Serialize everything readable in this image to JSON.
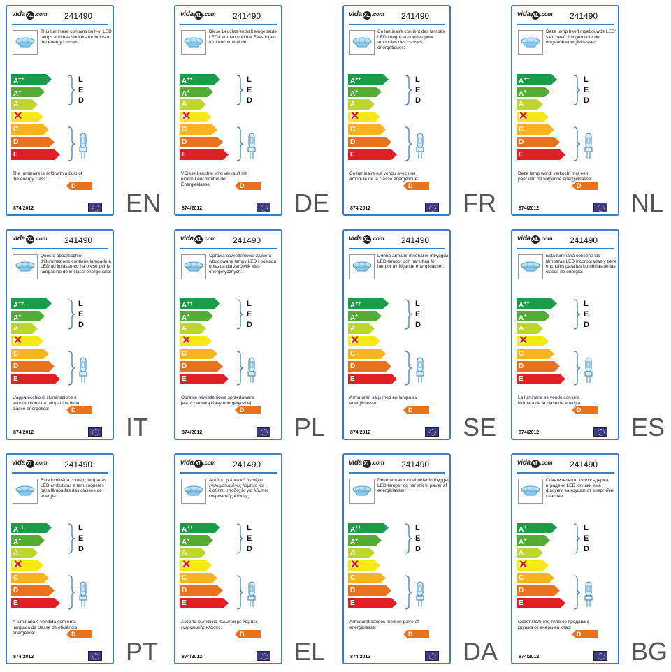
{
  "colors": {
    "border": "#3a7fc1",
    "A++": "#1a9d49",
    "A+": "#52ad32",
    "A": "#bdd62e",
    "B": "#f7e918",
    "C": "#f6b41f",
    "D": "#e8731c",
    "E": "#e01e26"
  },
  "icons": [
    "ceiling-lamp-icon",
    "halogen-bulb-icon",
    "eu-flag-icon",
    "cross-mark-icon"
  ],
  "brand": "vidaXL.com",
  "model": "241490",
  "classes": [
    "A++",
    "A+",
    "A",
    "B",
    "C",
    "D",
    "E"
  ],
  "excluded_class": "B",
  "led_letters": [
    "L",
    "E",
    "D"
  ],
  "sold_class": "D",
  "regulation": "874/2012",
  "labels": [
    {
      "lang": "EN",
      "desc": "This luminaire contains built-in LED lamps and has sockets for bulbs of the energy classes:",
      "sold": "The luminaire is sold with a bulb of the energy class:"
    },
    {
      "lang": "DE",
      "desc": "Diese Leuchte enthält eingebaute LED-Lampen und hat Fassungen für Leuchtmittel der",
      "sold": "VDiese Leuchte wird verkauft mit einem Leuchtmittel der Energieklasse:"
    },
    {
      "lang": "FR",
      "desc": "Ce luminaire contient des lampes LED intégré et douilles pour ampoules des classes énergétiques:",
      "sold": "Ce luminaire est vendu avec une ampoule de la classe énergétique:"
    },
    {
      "lang": "NL",
      "desc": "Deze lamp heeft ingebouwde LED' s en heeft fittingen voor de volgende energieklassen:",
      "sold": "Deze lamp wordt verkocht met een peer van de volgende energieklasse:"
    },
    {
      "lang": "IT",
      "desc": "Questo apparecchio d'illuminazione contiene lampade a LED ad incasso ed ha prese per le lampadine delle classi energetiche:",
      "sold": "L'apparecchio d' illuminazione è venduto con una lampadina della classe energetica:"
    },
    {
      "lang": "PL",
      "desc": "Oprawa oświetleniowa zawiera wbudowane lampy LED i posiada gniazda dla żarówek klas energetycznych:",
      "sold": "Oprawa oświetleniowa sprzedawana jest z żarówką klasy energetycznej:"
    },
    {
      "lang": "SE",
      "desc": "Denna armatur innehåller inbyggda LED-lampor och har uttag för lampor av följande energiklasser:",
      "sold": "Armaturen säljs med en lampa av energiklassen:"
    },
    {
      "lang": "ES",
      "desc": "Esta luminaria contiene las lámparas LED incorporadas y tiene enchufes para las bombillas de las clases de energía:",
      "sold": "La luminaria se vende con una lámpara de la clase de energía:"
    },
    {
      "lang": "PT",
      "desc": "Esta luminária contém lâmpadas LED embutidas e tem soquetes para lâmpadas das classes de energia:",
      "sold": "A luminária é vendida com uma lâmpada da classe de eficiência energética:"
    },
    {
      "lang": "EL",
      "desc": "Αυτό το φωτιστικό περιέχει ενσωματωμένες λάμπες και διαθέτει υποδοχές για λάμπες ενεργειακής κλάσης:",
      "sold": "Αυτό το φωτιστικό πωλείται με λάμπες ενεργειακής κλάσης:"
    },
    {
      "lang": "DA",
      "desc": "Dette armatur indeholder indbygget LED-lamper og har stik til pærer af energiklasser:",
      "sold": "Armaturet sælges med en pære af energiklasse:"
    },
    {
      "lang": "BG",
      "desc": "Осветителното тяло съдържа вградени LED крушки има фасунги за крушки от енергийни класове:",
      "sold": "Осветителното тяло се продава с крушка от енергиен клас:"
    }
  ]
}
